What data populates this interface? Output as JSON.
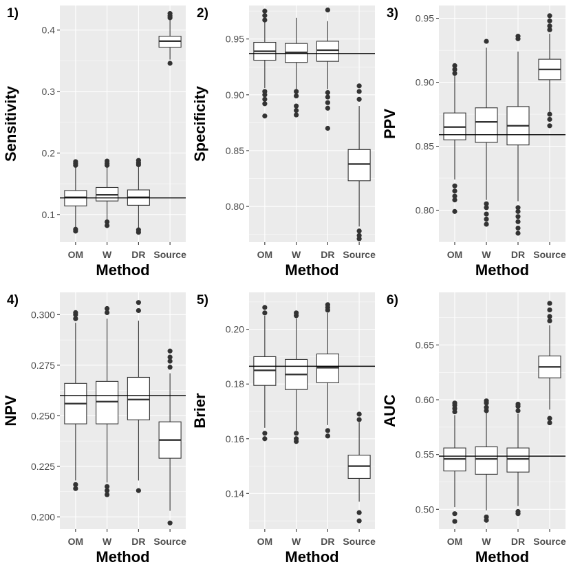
{
  "chart_data": [
    {
      "type": "boxplot",
      "tag": "1)",
      "xlabel": "Method",
      "ylabel": "Sensitivity",
      "categories": [
        "OM",
        "W",
        "DR",
        "Source"
      ],
      "ylim": [
        0.055,
        0.44
      ],
      "yticks": [
        0.1,
        0.2,
        0.3,
        0.4
      ],
      "ytick_labels": [
        "0.1",
        "0.2",
        "0.3",
        "0.4"
      ],
      "reference_line": 0.127,
      "boxes": [
        {
          "q1": 0.114,
          "median": 0.128,
          "q3": 0.139,
          "whisker_low": 0.078,
          "whisker_high": 0.178,
          "outliers": [
            0.073,
            0.076,
            0.18,
            0.183,
            0.186
          ]
        },
        {
          "q1": 0.122,
          "median": 0.132,
          "q3": 0.144,
          "whisker_low": 0.092,
          "whisker_high": 0.178,
          "outliers": [
            0.082,
            0.088,
            0.18,
            0.183,
            0.187
          ]
        },
        {
          "q1": 0.115,
          "median": 0.128,
          "q3": 0.14,
          "whisker_low": 0.078,
          "whisker_high": 0.178,
          "outliers": [
            0.071,
            0.075,
            0.181,
            0.184,
            0.188
          ]
        },
        {
          "q1": 0.372,
          "median": 0.382,
          "q3": 0.39,
          "whisker_low": 0.352,
          "whisker_high": 0.418,
          "outliers": [
            0.346,
            0.42,
            0.423,
            0.427
          ]
        }
      ]
    },
    {
      "type": "boxplot",
      "tag": "2)",
      "xlabel": "Method",
      "ylabel": "Specificity",
      "categories": [
        "OM",
        "W",
        "DR",
        "Source"
      ],
      "ylim": [
        0.768,
        0.98
      ],
      "yticks": [
        0.8,
        0.85,
        0.9,
        0.95
      ],
      "ytick_labels": [
        "0.80",
        "0.85",
        "0.90",
        "0.95"
      ],
      "reference_line": 0.937,
      "boxes": [
        {
          "q1": 0.931,
          "median": 0.939,
          "q3": 0.947,
          "whisker_low": 0.906,
          "whisker_high": 0.965,
          "outliers": [
            0.881,
            0.892,
            0.896,
            0.9,
            0.903,
            0.967,
            0.971,
            0.975
          ]
        },
        {
          "q1": 0.929,
          "median": 0.938,
          "q3": 0.946,
          "whisker_low": 0.905,
          "whisker_high": 0.969,
          "outliers": [
            0.882,
            0.886,
            0.89,
            0.899,
            0.903
          ]
        },
        {
          "q1": 0.93,
          "median": 0.94,
          "q3": 0.948,
          "whisker_low": 0.905,
          "whisker_high": 0.966,
          "outliers": [
            0.87,
            0.888,
            0.893,
            0.898,
            0.902,
            0.976
          ]
        },
        {
          "q1": 0.823,
          "median": 0.838,
          "q3": 0.851,
          "whisker_low": 0.782,
          "whisker_high": 0.89,
          "outliers": [
            0.771,
            0.774,
            0.778,
            0.896,
            0.903,
            0.908
          ]
        }
      ]
    },
    {
      "type": "boxplot",
      "tag": "3)",
      "xlabel": "Method",
      "ylabel": "PPV",
      "categories": [
        "OM",
        "W",
        "DR",
        "Source"
      ],
      "ylim": [
        0.775,
        0.96
      ],
      "yticks": [
        0.8,
        0.85,
        0.9,
        0.95
      ],
      "ytick_labels": [
        "0.80",
        "0.85",
        "0.90",
        "0.95"
      ],
      "reference_line": 0.859,
      "boxes": [
        {
          "q1": 0.855,
          "median": 0.865,
          "q3": 0.876,
          "whisker_low": 0.824,
          "whisker_high": 0.905,
          "outliers": [
            0.799,
            0.808,
            0.811,
            0.815,
            0.819,
            0.907,
            0.91,
            0.913
          ]
        },
        {
          "q1": 0.853,
          "median": 0.869,
          "q3": 0.88,
          "whisker_low": 0.808,
          "whisker_high": 0.927,
          "outliers": [
            0.789,
            0.793,
            0.797,
            0.802,
            0.805,
            0.932
          ]
        },
        {
          "q1": 0.851,
          "median": 0.866,
          "q3": 0.881,
          "whisker_low": 0.807,
          "whisker_high": 0.924,
          "outliers": [
            0.782,
            0.786,
            0.791,
            0.795,
            0.799,
            0.802,
            0.934,
            0.936
          ]
        },
        {
          "q1": 0.902,
          "median": 0.91,
          "q3": 0.918,
          "whisker_low": 0.877,
          "whisker_high": 0.938,
          "outliers": [
            0.866,
            0.871,
            0.875,
            0.941,
            0.944,
            0.948,
            0.952
          ]
        }
      ]
    },
    {
      "type": "boxplot",
      "tag": "4)",
      "xlabel": "Method",
      "ylabel": "NPV",
      "categories": [
        "OM",
        "W",
        "DR",
        "Source"
      ],
      "ylim": [
        0.194,
        0.311
      ],
      "yticks": [
        0.2,
        0.225,
        0.25,
        0.275,
        0.3
      ],
      "ytick_labels": [
        "0.200",
        "0.225",
        "0.250",
        "0.275",
        "0.300"
      ],
      "reference_line": 0.26,
      "boxes": [
        {
          "q1": 0.246,
          "median": 0.256,
          "q3": 0.266,
          "whisker_low": 0.218,
          "whisker_high": 0.296,
          "outliers": [
            0.214,
            0.216,
            0.298,
            0.3,
            0.301
          ]
        },
        {
          "q1": 0.246,
          "median": 0.257,
          "q3": 0.267,
          "whisker_low": 0.217,
          "whisker_high": 0.298,
          "outliers": [
            0.211,
            0.213,
            0.215,
            0.301,
            0.303
          ]
        },
        {
          "q1": 0.248,
          "median": 0.258,
          "q3": 0.269,
          "whisker_low": 0.218,
          "whisker_high": 0.297,
          "outliers": [
            0.213,
            0.302,
            0.306
          ]
        },
        {
          "q1": 0.229,
          "median": 0.238,
          "q3": 0.247,
          "whisker_low": 0.203,
          "whisker_high": 0.271,
          "outliers": [
            0.197,
            0.274,
            0.277,
            0.279,
            0.282
          ]
        }
      ]
    },
    {
      "type": "boxplot",
      "tag": "5)",
      "xlabel": "Method",
      "ylabel": "Brier",
      "categories": [
        "OM",
        "W",
        "DR",
        "Source"
      ],
      "ylim": [
        0.127,
        0.2135
      ],
      "yticks": [
        0.14,
        0.16,
        0.18,
        0.2
      ],
      "ytick_labels": [
        "0.14",
        "0.16",
        "0.18",
        "0.20"
      ],
      "reference_line": 0.1865,
      "boxes": [
        {
          "q1": 0.1795,
          "median": 0.185,
          "q3": 0.19,
          "whisker_low": 0.164,
          "whisker_high": 0.205,
          "outliers": [
            0.16,
            0.162,
            0.206,
            0.208
          ]
        },
        {
          "q1": 0.178,
          "median": 0.1835,
          "q3": 0.189,
          "whisker_low": 0.163,
          "whisker_high": 0.204,
          "outliers": [
            0.159,
            0.16,
            0.162,
            0.205,
            0.206
          ]
        },
        {
          "q1": 0.1805,
          "median": 0.186,
          "q3": 0.191,
          "whisker_low": 0.165,
          "whisker_high": 0.206,
          "outliers": [
            0.161,
            0.163,
            0.207,
            0.208,
            0.209
          ]
        },
        {
          "q1": 0.1455,
          "median": 0.15,
          "q3": 0.154,
          "whisker_low": 0.137,
          "whisker_high": 0.166,
          "outliers": [
            0.13,
            0.133,
            0.167,
            0.169
          ]
        }
      ]
    },
    {
      "type": "boxplot",
      "tag": "6)",
      "xlabel": "Method",
      "ylabel": "AUC",
      "categories": [
        "OM",
        "W",
        "DR",
        "Source"
      ],
      "ylim": [
        0.482,
        0.698
      ],
      "yticks": [
        0.5,
        0.55,
        0.6,
        0.65
      ],
      "ytick_labels": [
        "0.50",
        "0.55",
        "0.60",
        "0.65"
      ],
      "reference_line": 0.5485,
      "boxes": [
        {
          "q1": 0.535,
          "median": 0.546,
          "q3": 0.556,
          "whisker_low": 0.502,
          "whisker_high": 0.586,
          "outliers": [
            0.489,
            0.496,
            0.589,
            0.592,
            0.595,
            0.597
          ]
        },
        {
          "q1": 0.532,
          "median": 0.546,
          "q3": 0.557,
          "whisker_low": 0.499,
          "whisker_high": 0.588,
          "outliers": [
            0.49,
            0.493,
            0.59,
            0.593,
            0.597,
            0.599
          ]
        },
        {
          "q1": 0.534,
          "median": 0.546,
          "q3": 0.556,
          "whisker_low": 0.503,
          "whisker_high": 0.587,
          "outliers": [
            0.496,
            0.498,
            0.59,
            0.594,
            0.596
          ]
        },
        {
          "q1": 0.62,
          "median": 0.63,
          "q3": 0.64,
          "whisker_low": 0.591,
          "whisker_high": 0.668,
          "outliers": [
            0.579,
            0.583,
            0.672,
            0.676,
            0.682,
            0.688
          ]
        }
      ]
    }
  ]
}
